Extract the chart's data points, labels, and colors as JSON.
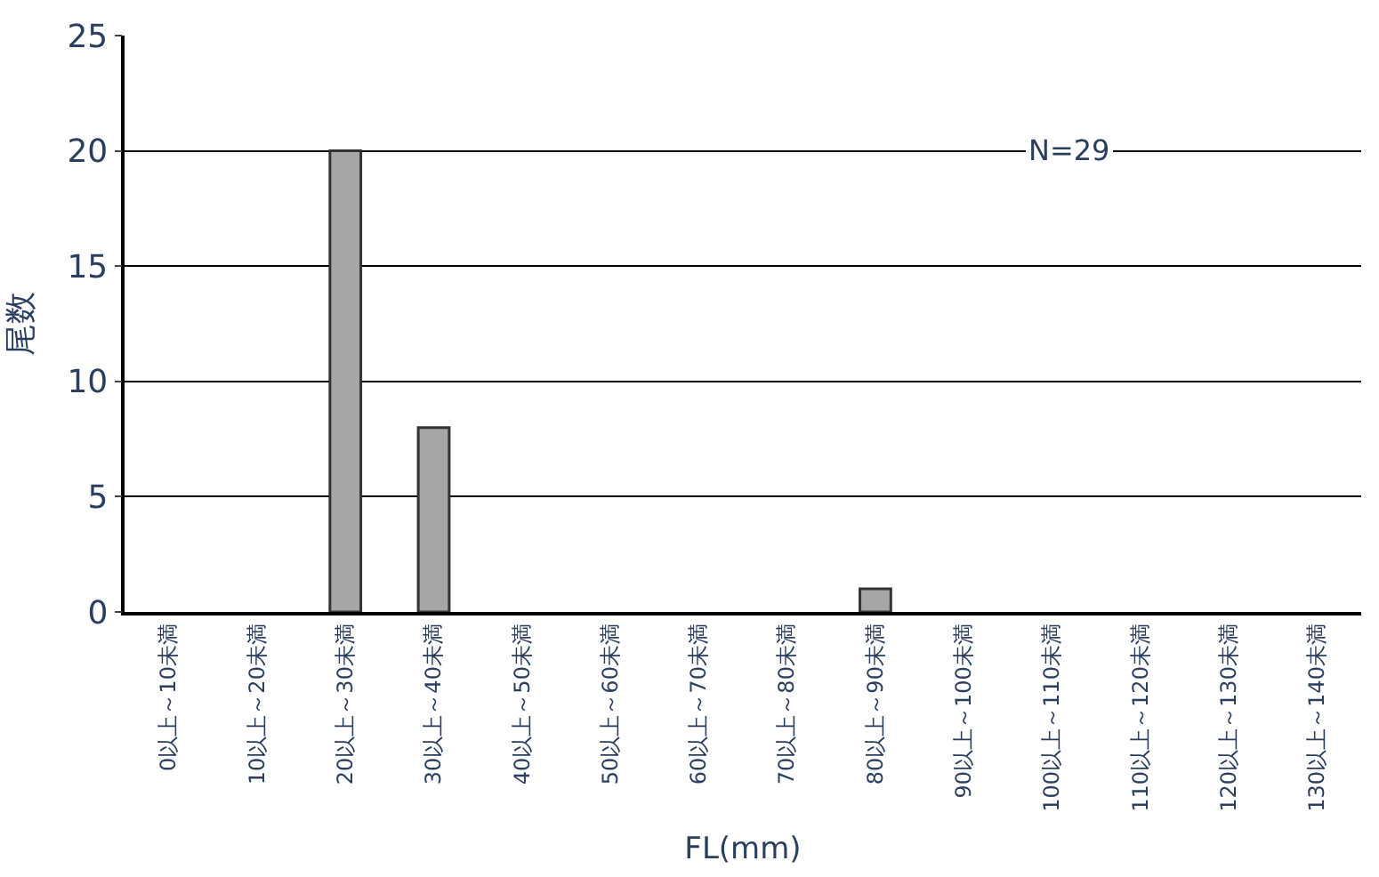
{
  "chart_data": {
    "type": "bar",
    "categories": [
      "0以上～10未満",
      "10以上～20未満",
      "20以上～30未満",
      "30以上～40未満",
      "40以上～50未満",
      "50以上～60未満",
      "60以上～70未満",
      "70以上～80未満",
      "80以上～90未満",
      "90以上～100未満",
      "100以上～110未満",
      "110以上～120未満",
      "120以上～130未満",
      "130以上～140未満"
    ],
    "values": [
      0,
      0,
      20,
      8,
      0,
      0,
      0,
      0,
      1,
      0,
      0,
      0,
      0,
      0
    ],
    "color": "#a6a6a6",
    "xlabel": "FL(mm)",
    "ylabel": "尾数",
    "annotations": [
      "N=29"
    ],
    "ylim": [
      0,
      25
    ],
    "yticks": [
      0,
      5,
      10,
      15,
      20,
      25
    ],
    "grid": "y"
  }
}
